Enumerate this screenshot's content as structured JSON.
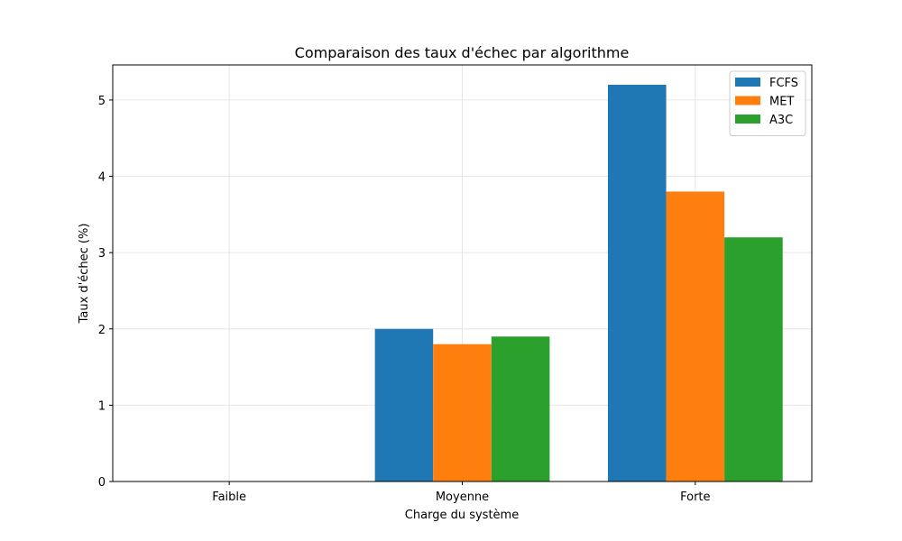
{
  "chart_data": {
    "type": "bar",
    "title": "Comparaison des taux d'échec par algorithme",
    "xlabel": "Charge du système",
    "ylabel": "Taux d'échec (%)",
    "categories": [
      "Faible",
      "Moyenne",
      "Forte"
    ],
    "series": [
      {
        "name": "FCFS",
        "color": "#1f77b4",
        "values": [
          0,
          2.0,
          5.2
        ]
      },
      {
        "name": "MET",
        "color": "#ff7f0e",
        "values": [
          0,
          1.8,
          3.8
        ]
      },
      {
        "name": "A3C",
        "color": "#2ca02c",
        "values": [
          0,
          1.9,
          3.2
        ]
      }
    ],
    "ylim": [
      0,
      5.46
    ],
    "yticks": [
      "0",
      "1",
      "2",
      "3",
      "4",
      "5"
    ],
    "grid": true,
    "legend_position": "top-right"
  }
}
